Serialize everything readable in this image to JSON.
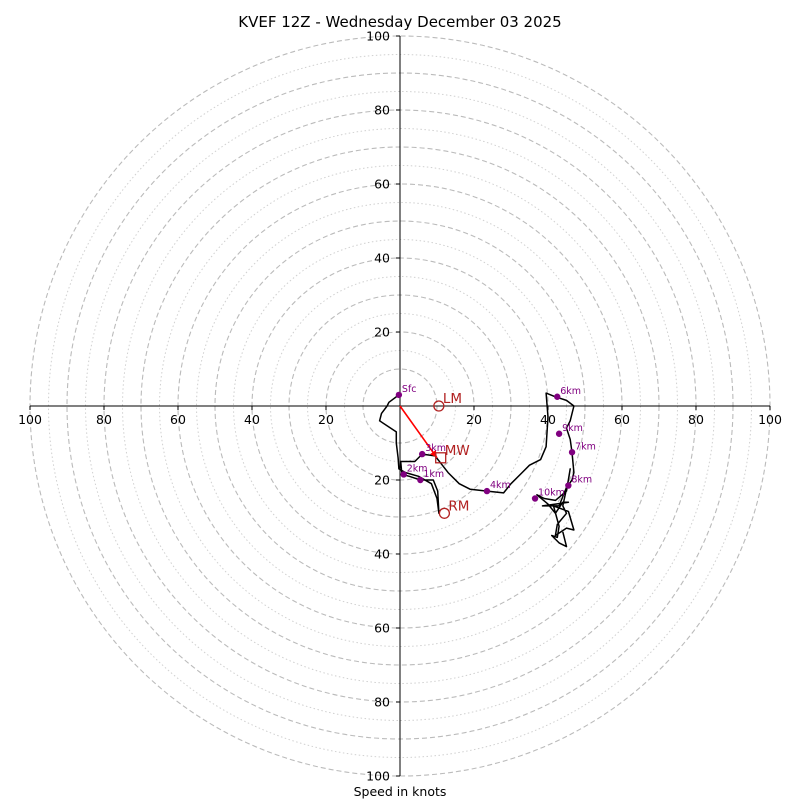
{
  "chart_data": {
    "type": "line",
    "subtype": "hodograph",
    "title": "KVEF 12Z - Wednesday December 03 2025",
    "xlabel": "Speed in knots",
    "ylabel": "",
    "xlim": [
      -100,
      100
    ],
    "ylim": [
      -100,
      100
    ],
    "ring_major": [
      10,
      20,
      30,
      40,
      50,
      60,
      70,
      80,
      90,
      100
    ],
    "ring_dotted": [
      15,
      25,
      35,
      45,
      55,
      65,
      75,
      85,
      95
    ],
    "x_tick_labels": [
      "100",
      "80",
      "60",
      "40",
      "20",
      "20",
      "40",
      "60",
      "80",
      "100"
    ],
    "x_tick_values": [
      -100,
      -80,
      -60,
      -40,
      -20,
      20,
      40,
      60,
      80,
      100
    ],
    "y_tick_labels": [
      "100",
      "80",
      "60",
      "40",
      "20",
      "20",
      "40",
      "60",
      "80",
      "100"
    ],
    "y_tick_values": [
      100,
      80,
      60,
      40,
      20,
      -20,
      -40,
      -60,
      -80,
      -100
    ],
    "series": [
      {
        "name": "hodograph trace",
        "color": "#000000",
        "points": [
          [
            -0.3,
            3
          ],
          [
            -3,
            1
          ],
          [
            -3.5,
            0
          ],
          [
            -5,
            -2
          ],
          [
            -5.5,
            -4
          ],
          [
            -1,
            -7
          ],
          [
            -1,
            -10
          ],
          [
            -0.5,
            -14
          ],
          [
            -0.3,
            -17
          ],
          [
            1.5,
            -18
          ],
          [
            5,
            -19
          ],
          [
            8.5,
            -21
          ],
          [
            10,
            -25
          ],
          [
            10.5,
            -29
          ],
          [
            10.2,
            -23
          ],
          [
            9,
            -20
          ],
          [
            5.5,
            -20
          ],
          [
            2.5,
            -19
          ],
          [
            0.5,
            -18.5
          ],
          [
            0.2,
            -15
          ],
          [
            4,
            -15
          ],
          [
            6,
            -13
          ],
          [
            9.5,
            -13.5
          ],
          [
            13,
            -18
          ],
          [
            16,
            -21
          ],
          [
            19,
            -22.5
          ],
          [
            23.5,
            -23
          ],
          [
            28,
            -23.5
          ],
          [
            30,
            -21
          ],
          [
            33,
            -18
          ],
          [
            35,
            -16
          ],
          [
            38,
            -14.5
          ],
          [
            39.5,
            -11
          ],
          [
            40,
            -3
          ],
          [
            39.5,
            3.5
          ],
          [
            42,
            2.5
          ],
          [
            45,
            1.5
          ],
          [
            47,
            0
          ],
          [
            46,
            -4
          ],
          [
            45,
            -6
          ],
          [
            46,
            -9
          ],
          [
            46.5,
            -12.5
          ],
          [
            47,
            -18
          ],
          [
            46.5,
            -20
          ],
          [
            45,
            -22
          ],
          [
            43,
            -27
          ],
          [
            40,
            -27
          ],
          [
            38.5,
            -27
          ],
          [
            42,
            -26.5
          ],
          [
            45.5,
            -26
          ],
          [
            44,
            -26
          ],
          [
            42,
            -29
          ],
          [
            40,
            -26.5
          ],
          [
            37,
            -24
          ],
          [
            39,
            -25
          ],
          [
            42,
            -25.5
          ],
          [
            45,
            -23
          ],
          [
            46,
            -17
          ],
          [
            45.5,
            -20
          ],
          [
            44,
            -27
          ],
          [
            45,
            -29
          ],
          [
            42.5,
            -32
          ],
          [
            42,
            -35
          ],
          [
            45,
            -33
          ],
          [
            47,
            -33.5
          ],
          [
            45.5,
            -28.5
          ],
          [
            41.5,
            -27
          ],
          [
            43,
            -32.5
          ],
          [
            42.5,
            -35.5
          ],
          [
            41,
            -35
          ],
          [
            43,
            -37
          ],
          [
            45,
            -38
          ],
          [
            44,
            -34
          ]
        ]
      }
    ],
    "points": [
      {
        "label": "Sfc",
        "u": -0.3,
        "v": 3
      },
      {
        "label": "1km",
        "u": 5.5,
        "v": -20
      },
      {
        "label": "2km",
        "u": 1,
        "v": -18.5
      },
      {
        "label": "3km",
        "u": 6,
        "v": -13
      },
      {
        "label": "4km",
        "u": 23.5,
        "v": -23
      },
      {
        "label": "6km",
        "u": 42.5,
        "v": 2.5
      },
      {
        "label": "7km",
        "u": 46.5,
        "v": -12.5
      },
      {
        "label": "8km",
        "u": 45.5,
        "v": -21.5
      },
      {
        "label": "9km",
        "u": 43,
        "v": -7.5
      },
      {
        "label": "10km",
        "u": 36.5,
        "v": -25
      }
    ],
    "storm_motion": [
      {
        "label": "LM",
        "u": 10.5,
        "v": 0,
        "marker": "circle"
      },
      {
        "label": "MW",
        "u": 11,
        "v": -14,
        "marker": "square"
      },
      {
        "label": "RM",
        "u": 12,
        "v": -29,
        "marker": "circle"
      }
    ],
    "shear_vector": {
      "from": [
        0,
        0
      ],
      "to": [
        10,
        -14
      ],
      "color": "#ff0000"
    },
    "colors": {
      "trace": "#000000",
      "point": "#800080",
      "motion": "#b22222",
      "shear": "#ff0000",
      "grid": "#bbbbbb",
      "axis": "#000000"
    }
  }
}
